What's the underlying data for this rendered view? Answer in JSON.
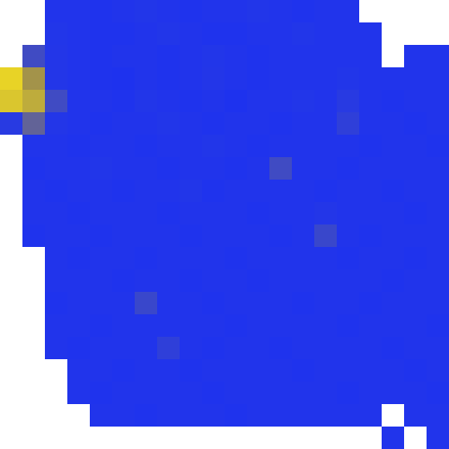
{
  "chart_data": {
    "type": "heatmap",
    "tick_labels": false,
    "color_scale": [
      "#1a2ff5",
      "#2a3ce0",
      "#9a8a50",
      "#f5e020"
    ],
    "color_range": [
      0,
      1
    ],
    "cells": [
      [
        null,
        null,
        0.15,
        0.15,
        0.12,
        0.15,
        0.18,
        0.15,
        0.12,
        0.15,
        0.15,
        0.18,
        0.15,
        0.12,
        0.15,
        0.15,
        null,
        null,
        null,
        null
      ],
      [
        null,
        null,
        0.18,
        0.15,
        0.12,
        0.12,
        0.15,
        0.18,
        0.15,
        0.12,
        0.12,
        0.15,
        0.15,
        0.18,
        0.15,
        0.15,
        0.15,
        null,
        null,
        null
      ],
      [
        null,
        0.4,
        0.2,
        0.15,
        0.12,
        0.15,
        0.15,
        0.12,
        0.15,
        0.18,
        0.15,
        0.12,
        0.15,
        0.15,
        0.15,
        0.15,
        0.15,
        null,
        0.15,
        0.15
      ],
      [
        0.95,
        0.7,
        0.2,
        0.15,
        0.12,
        0.1,
        0.15,
        0.12,
        0.15,
        0.2,
        0.15,
        0.12,
        0.15,
        0.15,
        0.15,
        0.18,
        0.15,
        0.15,
        0.15,
        0.15
      ],
      [
        0.9,
        0.8,
        0.4,
        0.15,
        0.15,
        0.12,
        0.18,
        0.15,
        0.12,
        0.15,
        0.1,
        0.15,
        0.15,
        0.18,
        0.15,
        0.3,
        0.15,
        0.12,
        0.15,
        0.15
      ],
      [
        0.3,
        0.5,
        0.2,
        0.15,
        0.12,
        0.15,
        0.15,
        0.18,
        0.15,
        0.12,
        0.15,
        0.15,
        0.12,
        0.15,
        0.15,
        0.35,
        0.15,
        0.15,
        0.12,
        0.15
      ],
      [
        null,
        0.15,
        0.15,
        0.12,
        0.15,
        0.15,
        0.12,
        0.15,
        0.15,
        0.18,
        0.15,
        0.12,
        0.15,
        0.15,
        0.15,
        0.15,
        0.12,
        0.15,
        0.15,
        0.12
      ],
      [
        null,
        0.12,
        0.15,
        0.15,
        0.18,
        0.15,
        0.15,
        0.12,
        0.15,
        0.15,
        0.12,
        0.15,
        0.4,
        0.15,
        0.15,
        0.12,
        0.15,
        0.15,
        0.15,
        0.15
      ],
      [
        null,
        0.15,
        0.12,
        0.15,
        0.15,
        0.12,
        0.15,
        0.15,
        0.18,
        0.12,
        0.15,
        0.15,
        0.15,
        0.15,
        0.12,
        0.15,
        0.15,
        0.12,
        0.15,
        0.15
      ],
      [
        null,
        0.15,
        0.15,
        0.12,
        0.15,
        0.15,
        0.15,
        0.12,
        0.15,
        0.15,
        0.15,
        0.12,
        0.15,
        0.15,
        0.2,
        0.15,
        0.15,
        0.15,
        0.12,
        0.15
      ],
      [
        null,
        0.12,
        0.15,
        0.15,
        0.12,
        0.15,
        0.15,
        0.15,
        0.12,
        0.15,
        0.15,
        0.15,
        0.12,
        0.15,
        0.38,
        0.15,
        0.12,
        0.15,
        0.15,
        0.15
      ],
      [
        null,
        null,
        0.15,
        0.12,
        0.15,
        0.15,
        0.12,
        0.15,
        0.15,
        0.15,
        0.12,
        0.15,
        0.15,
        0.15,
        0.15,
        0.12,
        0.15,
        0.15,
        0.12,
        0.15
      ],
      [
        null,
        null,
        0.15,
        0.15,
        0.15,
        0.12,
        0.15,
        0.15,
        0.12,
        0.15,
        0.15,
        0.12,
        0.15,
        0.15,
        0.15,
        0.15,
        0.15,
        0.12,
        0.15,
        0.15
      ],
      [
        null,
        null,
        0.12,
        0.15,
        0.15,
        0.15,
        0.38,
        0.15,
        0.15,
        0.12,
        0.15,
        0.15,
        0.15,
        0.12,
        0.15,
        0.15,
        0.12,
        0.15,
        0.15,
        0.15
      ],
      [
        null,
        null,
        0.15,
        0.15,
        0.12,
        0.15,
        0.15,
        0.15,
        0.15,
        0.15,
        0.12,
        0.15,
        0.15,
        0.15,
        0.15,
        0.12,
        0.15,
        0.15,
        0.15,
        0.12
      ],
      [
        null,
        null,
        0.15,
        0.12,
        0.15,
        0.15,
        0.15,
        0.35,
        0.15,
        0.12,
        0.15,
        0.15,
        0.12,
        0.15,
        0.15,
        0.15,
        0.15,
        0.12,
        0.15,
        0.15
      ],
      [
        null,
        null,
        null,
        0.15,
        0.15,
        0.12,
        0.15,
        0.15,
        0.12,
        0.15,
        0.15,
        0.15,
        0.15,
        0.12,
        0.15,
        0.15,
        0.15,
        0.15,
        0.12,
        0.15
      ],
      [
        null,
        null,
        null,
        0.15,
        0.12,
        0.15,
        0.15,
        0.15,
        0.15,
        0.12,
        0.15,
        0.15,
        0.15,
        0.15,
        0.15,
        0.12,
        0.15,
        0.15,
        0.15,
        0.12
      ],
      [
        null,
        null,
        null,
        null,
        0.15,
        0.15,
        0.12,
        0.15,
        0.15,
        0.15,
        0.12,
        0.15,
        0.15,
        0.15,
        0.15,
        0.15,
        0.15,
        null,
        0.15,
        0.15
      ],
      [
        null,
        null,
        null,
        null,
        null,
        null,
        null,
        null,
        null,
        null,
        null,
        null,
        null,
        null,
        null,
        null,
        null,
        0.15,
        null,
        0.15
      ]
    ]
  }
}
